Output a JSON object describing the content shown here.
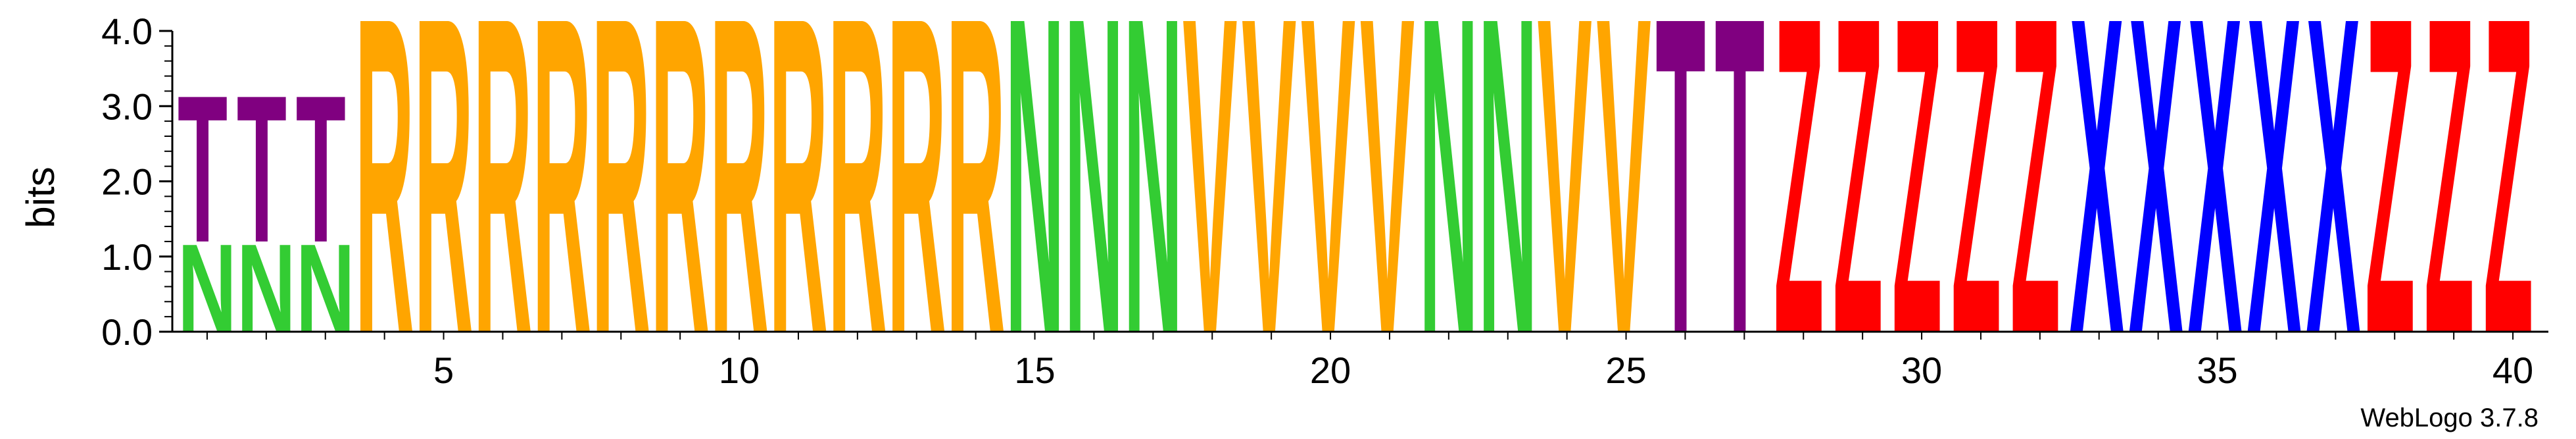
{
  "chart_data": {
    "type": "sequence_logo",
    "ylabel": "bits",
    "ylim": [
      0,
      4.0
    ],
    "yticks": [
      "0.0",
      "1.0",
      "2.0",
      "3.0",
      "4.0"
    ],
    "xlim": [
      1,
      40
    ],
    "xticks": [
      "5",
      "10",
      "15",
      "20",
      "25",
      "30",
      "35",
      "40"
    ],
    "footer": "WebLogo 3.7.8",
    "colors": {
      "T": "#800080",
      "N": "#33cc33",
      "R": "#ffa500",
      "V": "#ffa500",
      "Z": "#ff0000",
      "X": "#0000ff"
    },
    "positions": [
      [
        {
          "letter": "N",
          "bits": 1.2
        },
        {
          "letter": "T",
          "bits": 2.0
        }
      ],
      [
        {
          "letter": "N",
          "bits": 1.2
        },
        {
          "letter": "T",
          "bits": 2.0
        }
      ],
      [
        {
          "letter": "N",
          "bits": 1.2
        },
        {
          "letter": "T",
          "bits": 2.0
        }
      ],
      [
        {
          "letter": "R",
          "bits": 4.3
        }
      ],
      [
        {
          "letter": "R",
          "bits": 4.3
        }
      ],
      [
        {
          "letter": "R",
          "bits": 4.3
        }
      ],
      [
        {
          "letter": "R",
          "bits": 4.3
        }
      ],
      [
        {
          "letter": "R",
          "bits": 4.3
        }
      ],
      [
        {
          "letter": "R",
          "bits": 4.3
        }
      ],
      [
        {
          "letter": "R",
          "bits": 4.3
        }
      ],
      [
        {
          "letter": "R",
          "bits": 4.3
        }
      ],
      [
        {
          "letter": "R",
          "bits": 4.3
        }
      ],
      [
        {
          "letter": "R",
          "bits": 4.3
        }
      ],
      [
        {
          "letter": "R",
          "bits": 4.3
        }
      ],
      [
        {
          "letter": "N",
          "bits": 4.3
        }
      ],
      [
        {
          "letter": "N",
          "bits": 4.3
        }
      ],
      [
        {
          "letter": "N",
          "bits": 4.3
        }
      ],
      [
        {
          "letter": "V",
          "bits": 4.3
        }
      ],
      [
        {
          "letter": "V",
          "bits": 4.3
        }
      ],
      [
        {
          "letter": "V",
          "bits": 4.3
        }
      ],
      [
        {
          "letter": "V",
          "bits": 4.3
        }
      ],
      [
        {
          "letter": "N",
          "bits": 4.3
        }
      ],
      [
        {
          "letter": "N",
          "bits": 4.3
        }
      ],
      [
        {
          "letter": "V",
          "bits": 4.3
        }
      ],
      [
        {
          "letter": "V",
          "bits": 4.3
        }
      ],
      [
        {
          "letter": "T",
          "bits": 4.3
        }
      ],
      [
        {
          "letter": "T",
          "bits": 4.3
        }
      ],
      [
        {
          "letter": "Z",
          "bits": 4.3
        }
      ],
      [
        {
          "letter": "Z",
          "bits": 4.3
        }
      ],
      [
        {
          "letter": "Z",
          "bits": 4.3
        }
      ],
      [
        {
          "letter": "Z",
          "bits": 4.3
        }
      ],
      [
        {
          "letter": "Z",
          "bits": 4.3
        }
      ],
      [
        {
          "letter": "X",
          "bits": 4.3
        }
      ],
      [
        {
          "letter": "X",
          "bits": 4.3
        }
      ],
      [
        {
          "letter": "X",
          "bits": 4.3
        }
      ],
      [
        {
          "letter": "X",
          "bits": 4.3
        }
      ],
      [
        {
          "letter": "X",
          "bits": 4.3
        }
      ],
      [
        {
          "letter": "Z",
          "bits": 4.3
        }
      ],
      [
        {
          "letter": "Z",
          "bits": 4.3
        }
      ],
      [
        {
          "letter": "Z",
          "bits": 4.3
        }
      ]
    ]
  }
}
